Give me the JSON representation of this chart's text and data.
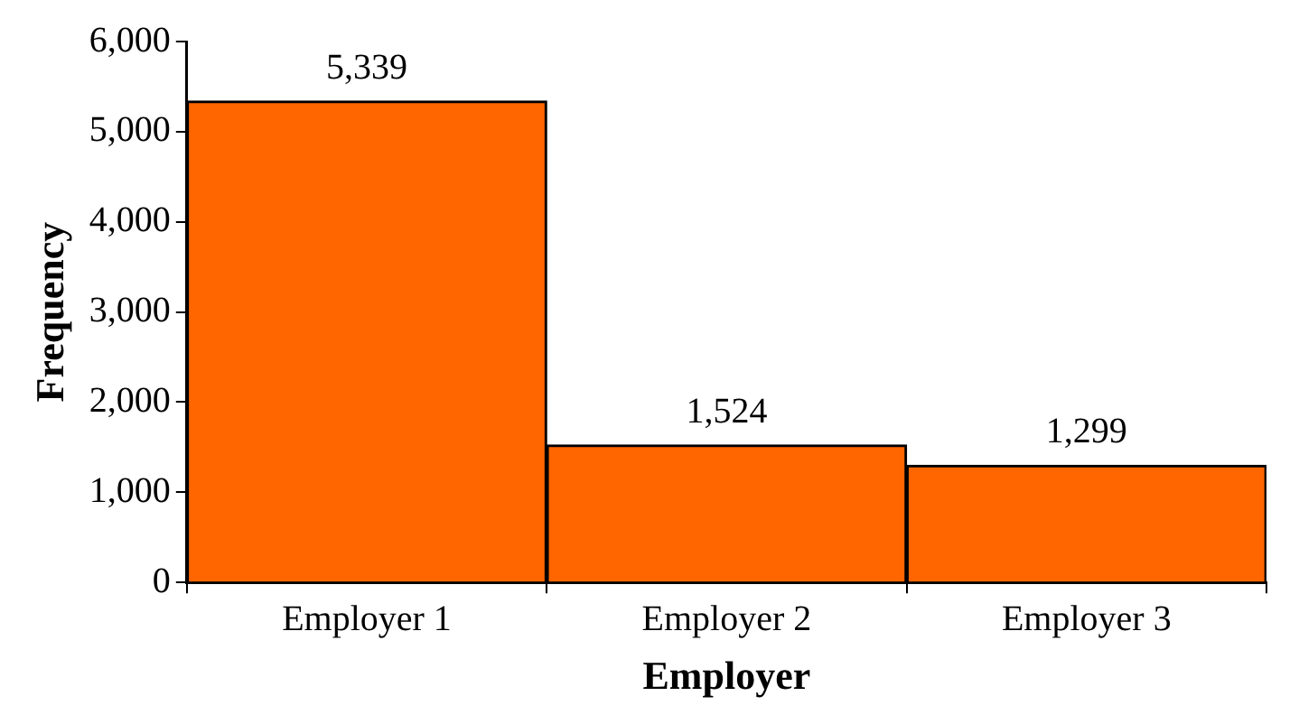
{
  "chart_data": {
    "type": "bar",
    "xlabel": "Employer",
    "ylabel": "Frequency",
    "categories": [
      "Employer 1",
      "Employer 2",
      "Employer 3"
    ],
    "values": [
      5339,
      1524,
      1299
    ],
    "color": "#ff6600",
    "ylim": [
      0,
      6000
    ],
    "yticks": [
      {
        "value": 0,
        "label": "0"
      },
      {
        "value": 1000,
        "label": "1,000"
      },
      {
        "value": 2000,
        "label": "2,000"
      },
      {
        "value": 3000,
        "label": "3,000"
      },
      {
        "value": 4000,
        "label": "4,000"
      },
      {
        "value": 5000,
        "label": "5,000"
      },
      {
        "value": 6000,
        "label": "6,000"
      }
    ],
    "value_labels": [
      "5,339",
      "1,524",
      "1,299"
    ]
  }
}
